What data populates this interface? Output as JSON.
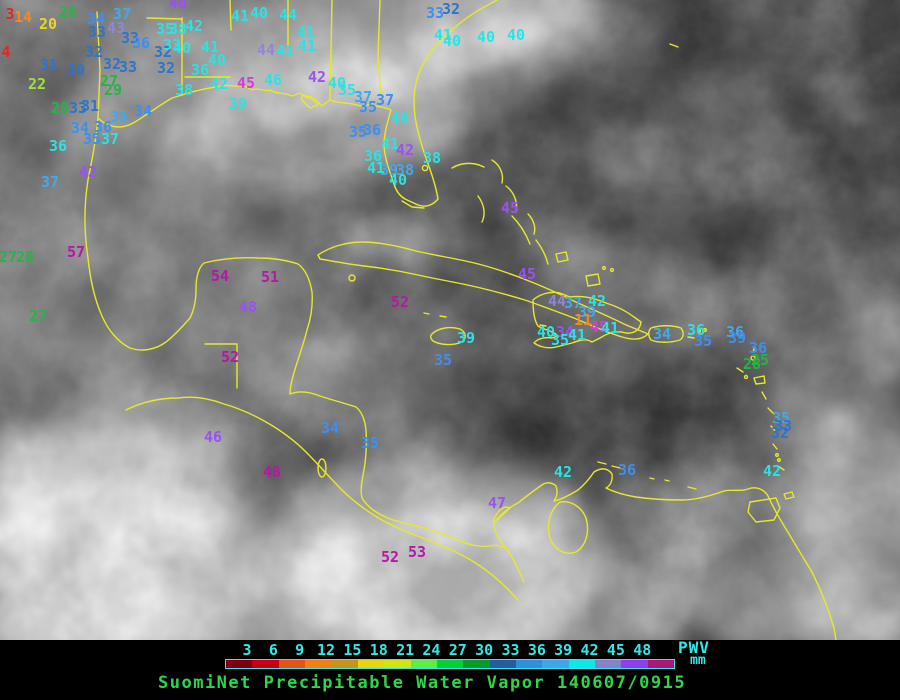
{
  "title": "SuomiNet Precipitable Water Vapor 140607/0915",
  "legend": {
    "ticks": [
      "3",
      "6",
      "9",
      "12",
      "15",
      "18",
      "21",
      "24",
      "27",
      "30",
      "33",
      "36",
      "39",
      "42",
      "45",
      "48"
    ],
    "unit_label": "PWV",
    "unit_sub": "mm",
    "tick_color": "#35e8e8",
    "bar_border_color": "#35e8e8",
    "title_color": "#2fd64a",
    "segment_colors": [
      "#7a0011",
      "#c40016",
      "#e2541a",
      "#f08015",
      "#c5941e",
      "#e7d513",
      "#cfe51a",
      "#5ced4a",
      "#05d03b",
      "#089b2b",
      "#1f5f9f",
      "#2e8fe0",
      "#3ba6e8",
      "#0ae8e8",
      "#8781cc",
      "#8f3df0",
      "#a81878"
    ]
  },
  "map": {
    "coastline_color": "#e8e82a",
    "palette": {
      "RED": "#e8241c",
      "ORG": "#f08a28",
      "YEL": "#e8d822",
      "CHR": "#9fe23c",
      "GRN": "#27b348",
      "SBL": "#2f74c8",
      "BLU": "#3d8ff0",
      "LBL": "#42a9ea",
      "CYN": "#2ce2e2",
      "SLT": "#8f86d8",
      "VIO": "#9a52f0",
      "MAG": "#b517a8",
      "PNK": "#d23fd2"
    },
    "stations": [
      [
        "3",
        10,
        14,
        "RED"
      ],
      [
        "14",
        23,
        17,
        "ORG"
      ],
      [
        "20",
        48,
        24,
        "YEL"
      ],
      [
        "28",
        68,
        12,
        "GRN"
      ],
      [
        "34",
        96,
        19,
        "BLU"
      ],
      [
        "37",
        122,
        14,
        "LBL"
      ],
      [
        "33",
        97,
        32,
        "SBL"
      ],
      [
        "43",
        116,
        28,
        "SLT"
      ],
      [
        "33",
        130,
        38,
        "SBL"
      ],
      [
        "36",
        141,
        43,
        "BLU"
      ],
      [
        "4",
        6,
        52,
        "RED"
      ],
      [
        "32",
        94,
        52,
        "SBL"
      ],
      [
        "31",
        49,
        65,
        "SBL"
      ],
      [
        "30",
        76,
        70,
        "SBL"
      ],
      [
        "32",
        112,
        64,
        "SBL"
      ],
      [
        "33",
        128,
        67,
        "SBL"
      ],
      [
        "32",
        163,
        52,
        "SBL"
      ],
      [
        "32",
        166,
        68,
        "SBL"
      ],
      [
        "22",
        37,
        84,
        "CHR"
      ],
      [
        "27",
        109,
        81,
        "GRN"
      ],
      [
        "29",
        113,
        90,
        "GRN"
      ],
      [
        "28",
        60,
        108,
        "GRN"
      ],
      [
        "33",
        78,
        108,
        "SBL"
      ],
      [
        "31",
        90,
        106,
        "SBL"
      ],
      [
        "34",
        80,
        128,
        "BLU"
      ],
      [
        "35",
        119,
        117,
        "LBL"
      ],
      [
        "34",
        143,
        111,
        "BLU"
      ],
      [
        "36",
        103,
        127,
        "BLU"
      ],
      [
        "35",
        92,
        139,
        "BLU"
      ],
      [
        "37",
        110,
        139,
        "CYN"
      ],
      [
        "36",
        58,
        146,
        "CYN"
      ],
      [
        "37",
        50,
        182,
        "LBL"
      ],
      [
        "42",
        88,
        172,
        "VIO"
      ],
      [
        "57",
        76,
        252,
        "MAG"
      ],
      [
        "27",
        8,
        257,
        "GRN"
      ],
      [
        "28",
        25,
        257,
        "GRN"
      ],
      [
        "27",
        38,
        316,
        "GRN"
      ],
      [
        "35",
        165,
        29,
        "CYN"
      ],
      [
        "38",
        178,
        29,
        "CYN"
      ],
      [
        "42",
        194,
        26,
        "CYN"
      ],
      [
        "41",
        240,
        16,
        "CYN"
      ],
      [
        "40",
        259,
        13,
        "CYN"
      ],
      [
        "44",
        288,
        15,
        "CYN"
      ],
      [
        "40",
        178,
        3,
        "VIO"
      ],
      [
        "33",
        172,
        45,
        "CYN"
      ],
      [
        "40",
        182,
        48,
        "CYN"
      ],
      [
        "41",
        210,
        47,
        "CYN"
      ],
      [
        "40",
        217,
        60,
        "CYN"
      ],
      [
        "36",
        200,
        70,
        "CYN"
      ],
      [
        "38",
        184,
        90,
        "CYN"
      ],
      [
        "42",
        219,
        84,
        "CYN"
      ],
      [
        "45",
        246,
        83,
        "PNK"
      ],
      [
        "46",
        273,
        80,
        "CYN"
      ],
      [
        "39",
        238,
        104,
        "CYN"
      ],
      [
        "44",
        266,
        50,
        "SLT"
      ],
      [
        "41",
        285,
        51,
        "CYN"
      ],
      [
        "41",
        306,
        32,
        "CYN"
      ],
      [
        "41",
        307,
        46,
        "CYN"
      ],
      [
        "33",
        435,
        13,
        "BLU"
      ],
      [
        "32",
        451,
        9,
        "SBL"
      ],
      [
        "42",
        317,
        77,
        "VIO"
      ],
      [
        "40",
        337,
        83,
        "CYN"
      ],
      [
        "35",
        347,
        90,
        "CYN"
      ],
      [
        "37",
        363,
        97,
        "LBL"
      ],
      [
        "35",
        368,
        107,
        "BLU"
      ],
      [
        "37",
        385,
        100,
        "BLU"
      ],
      [
        "40",
        400,
        118,
        "CYN"
      ],
      [
        "36",
        372,
        130,
        "BLU"
      ],
      [
        "35",
        358,
        132,
        "BLU"
      ],
      [
        "41",
        390,
        144,
        "CYN"
      ],
      [
        "42",
        405,
        150,
        "VIO"
      ],
      [
        "38",
        432,
        158,
        "CYN"
      ],
      [
        "36",
        373,
        156,
        "CYN"
      ],
      [
        "41",
        376,
        168,
        "CYN"
      ],
      [
        "39",
        389,
        170,
        "LBL"
      ],
      [
        "38",
        405,
        170,
        "LBL"
      ],
      [
        "40",
        398,
        180,
        "CYN"
      ],
      [
        "41",
        443,
        35,
        "CYN"
      ],
      [
        "40",
        452,
        41,
        "CYN"
      ],
      [
        "40",
        486,
        37,
        "CYN"
      ],
      [
        "40",
        516,
        35,
        "CYN"
      ],
      [
        "45",
        510,
        208,
        "VIO"
      ],
      [
        "45",
        527,
        274,
        "VIO"
      ],
      [
        "52",
        400,
        302,
        "MAG"
      ],
      [
        "54",
        220,
        276,
        "MAG"
      ],
      [
        "51",
        270,
        277,
        "MAG"
      ],
      [
        "48",
        248,
        307,
        "VIO"
      ],
      [
        "52",
        230,
        357,
        "MAG"
      ],
      [
        "39",
        466,
        338,
        "CYN"
      ],
      [
        "35",
        443,
        360,
        "BLU"
      ],
      [
        "44",
        557,
        301,
        "SLT"
      ],
      [
        "37",
        573,
        303,
        "LBL"
      ],
      [
        "42",
        597,
        301,
        "CYN"
      ],
      [
        "39",
        587,
        312,
        "LBL"
      ],
      [
        "11",
        583,
        320,
        "ORG"
      ],
      [
        "45",
        599,
        327,
        "PNK"
      ],
      [
        "41",
        610,
        328,
        "CYN"
      ],
      [
        "40",
        546,
        332,
        "CYN"
      ],
      [
        "34",
        565,
        332,
        "VIO"
      ],
      [
        "41",
        577,
        335,
        "CYN"
      ],
      [
        "35",
        560,
        340,
        "CYN"
      ],
      [
        "34",
        662,
        334,
        "LBL"
      ],
      [
        "36",
        696,
        330,
        "CYN"
      ],
      [
        "35",
        703,
        341,
        "BLU"
      ],
      [
        "36",
        735,
        332,
        "LBL"
      ],
      [
        "39",
        737,
        338,
        "BLU"
      ],
      [
        "36",
        758,
        348,
        "BLU"
      ],
      [
        "25",
        760,
        360,
        "GRN"
      ],
      [
        "28",
        752,
        364,
        "GRN"
      ],
      [
        "35",
        781,
        418,
        "LBL"
      ],
      [
        "33",
        783,
        426,
        "SBL"
      ],
      [
        "32",
        780,
        433,
        "SBL"
      ],
      [
        "42",
        772,
        471,
        "CYN"
      ],
      [
        "46",
        213,
        437,
        "VIO"
      ],
      [
        "34",
        330,
        428,
        "BLU"
      ],
      [
        "35",
        370,
        443,
        "BLU"
      ],
      [
        "48",
        272,
        472,
        "MAG"
      ],
      [
        "52",
        390,
        557,
        "MAG"
      ],
      [
        "53",
        417,
        552,
        "MAG"
      ],
      [
        "47",
        497,
        503,
        "VIO"
      ],
      [
        "42",
        563,
        472,
        "CYN"
      ],
      [
        "36",
        627,
        470,
        "BLU"
      ]
    ]
  }
}
